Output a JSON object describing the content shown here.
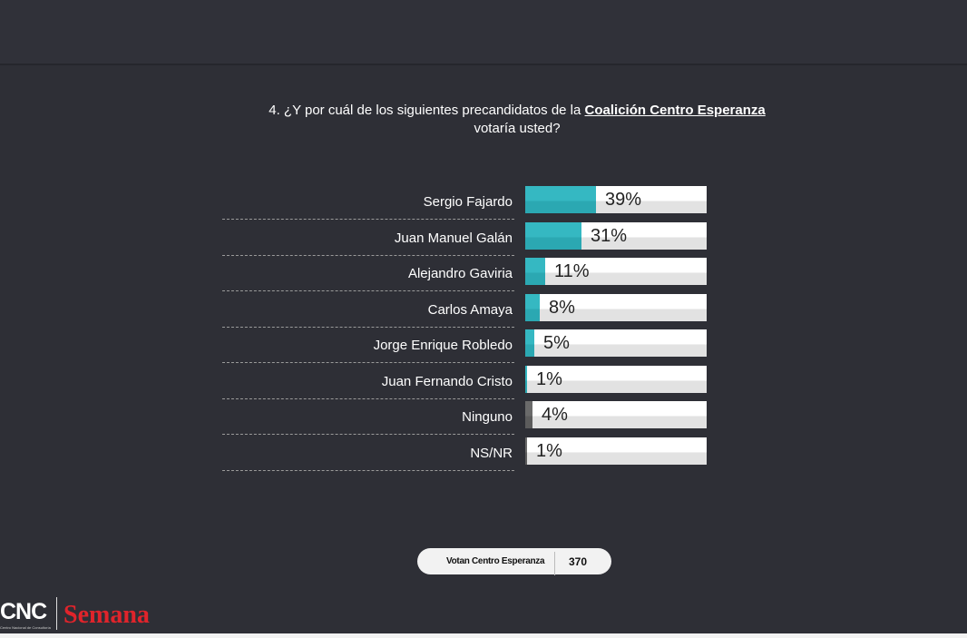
{
  "question": {
    "prefix": "4. ¿Y por cuál de los siguientes precandidatos de la ",
    "highlight": "Coalición Centro Esperanza",
    "suffix": "votaría usted?"
  },
  "chart_data": {
    "type": "bar",
    "orientation": "horizontal",
    "categories": [
      "Sergio Fajardo",
      "Juan Manuel Galán",
      "Alejandro Gaviria",
      "Carlos Amaya",
      "Jorge Enrique Robledo",
      "Juan Fernando Cristo",
      "Ninguno",
      "NS/NR"
    ],
    "values": [
      39,
      31,
      11,
      8,
      5,
      1,
      4,
      1
    ],
    "labels": [
      "39%",
      "31%",
      "11%",
      "8%",
      "5%",
      "1%",
      "4%",
      "1%"
    ],
    "xlim": [
      0,
      100
    ],
    "colors": [
      "#35b8c2",
      "#35b8c2",
      "#35b8c2",
      "#35b8c2",
      "#35b8c2",
      "#35b8c2",
      "#6a6a6a",
      "#6a6a6a"
    ]
  },
  "footer": {
    "sample_label": "Votan Centro Esperanza",
    "sample_value": "370"
  },
  "logos": {
    "cnc": "CNC",
    "cnc_sub": "Centro Nacional de Consultoría",
    "semana": "Semana"
  }
}
